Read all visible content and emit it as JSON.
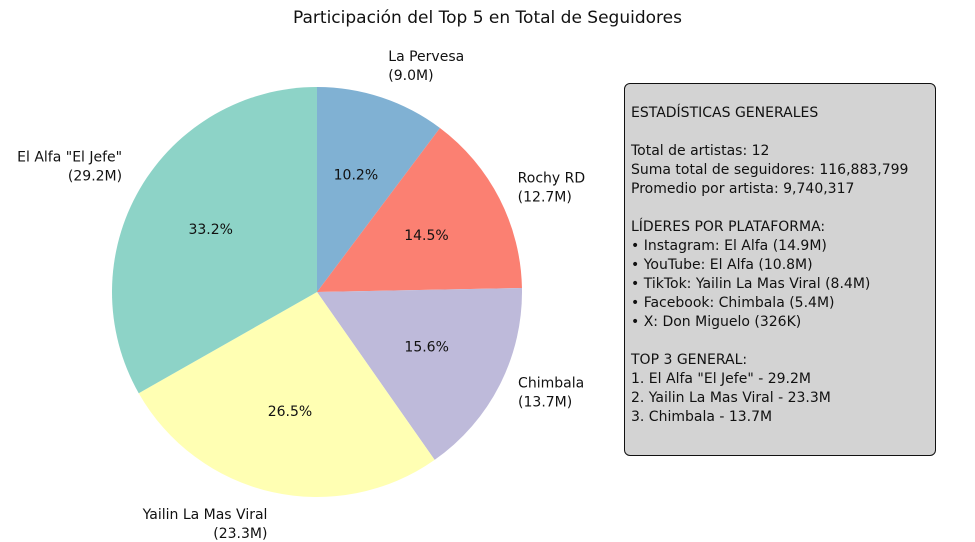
{
  "chart_data": {
    "type": "pie",
    "title": "Participación del Top 5 en Total de Seguidores",
    "slices": [
      {
        "label": "La Pervesa",
        "value_label": "(9.0M)",
        "value": 9.0,
        "percent_label": "10.2%",
        "color": "#80b1d3"
      },
      {
        "label": "Rochy RD",
        "value_label": "(12.7M)",
        "value": 12.7,
        "percent_label": "14.5%",
        "color": "#fb8072"
      },
      {
        "label": "Chimbala",
        "value_label": "(13.7M)",
        "value": 13.7,
        "percent_label": "15.6%",
        "color": "#bebada"
      },
      {
        "label": "Yailin La Mas Viral",
        "value_label": "(23.3M)",
        "value": 23.3,
        "percent_label": "26.5%",
        "color": "#ffffb3"
      },
      {
        "label": "El Alfa \"El Jefe\"",
        "value_label": "(29.2M)",
        "value": 29.2,
        "percent_label": "33.2%",
        "color": "#8dd3c7"
      }
    ]
  },
  "stats_box": {
    "lines": [
      "ESTADÍSTICAS GENERALES",
      "",
      "Total de artistas: 12",
      "Suma total de seguidores: 116,883,799",
      "Promedio por artista: 9,740,317",
      "",
      "LÍDERES POR PLATAFORMA:",
      "• Instagram: El Alfa (14.9M)",
      "• YouTube: El Alfa (10.8M)",
      "• TikTok: Yailin La Mas Viral (8.4M)",
      "• Facebook: Chimbala (5.4M)",
      "• X: Don Miguelo (326K)",
      "",
      "TOP 3 GENERAL:",
      "1. El Alfa \"El Jefe\" - 29.2M",
      "2. Yailin La Mas Viral - 23.3M",
      "3. Chimbala - 13.7M"
    ]
  }
}
